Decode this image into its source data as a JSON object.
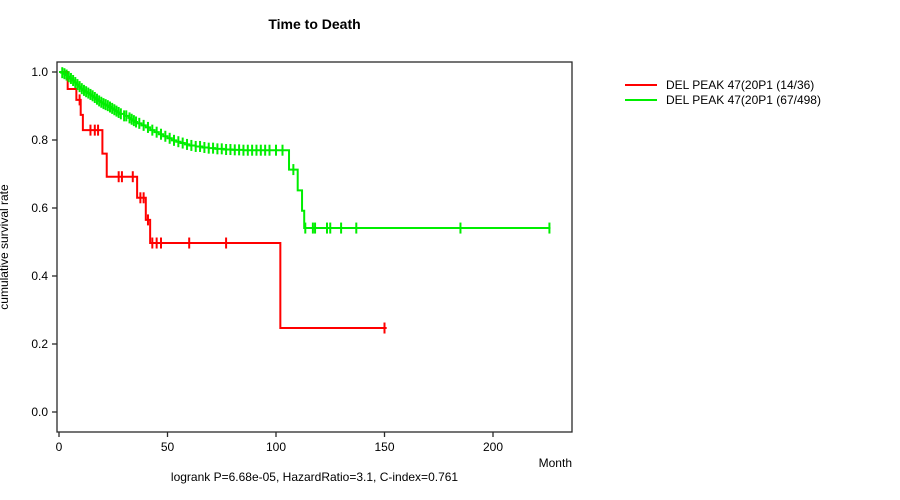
{
  "title": "Time to Death",
  "footer": "logrank P=6.68e-05, HazardRatio=3.1, C-index=0.761",
  "axes": {
    "x_label": "Month",
    "y_label": "cumulative survival rate",
    "x_ticks": [
      0,
      50,
      100,
      150,
      200
    ],
    "y_ticks": [
      "0.0",
      "0.2",
      "0.4",
      "0.6",
      "0.8",
      "1.0"
    ]
  },
  "legend": {
    "items": [
      {
        "label": "DEL PEAK 47(20P1 (14/36)",
        "color": "#ff0000"
      },
      {
        "label": "DEL PEAK 47(20P1 (67/498)",
        "color": "#00ee00"
      }
    ]
  },
  "chart_data": {
    "type": "line",
    "subtype": "kaplan-meier-step",
    "title": "Time to Death",
    "xlabel": "Month",
    "ylabel": "cumulative survival rate",
    "xlim": [
      0,
      236
    ],
    "ylim": [
      0,
      1.04
    ],
    "grid": false,
    "legend_position": "right-outside",
    "series": [
      {
        "name": "DEL PEAK 47(20P1 (14/36)",
        "color": "#ff0000",
        "steps": [
          [
            0,
            1.0
          ],
          [
            4,
            0.95
          ],
          [
            8,
            0.918
          ],
          [
            10,
            0.874
          ],
          [
            11,
            0.829
          ],
          [
            20,
            0.76
          ],
          [
            22,
            0.692
          ],
          [
            36,
            0.63
          ],
          [
            40,
            0.565
          ],
          [
            42,
            0.497
          ],
          [
            102,
            0.247
          ]
        ],
        "end": 151,
        "censors": [
          9.5,
          14.5,
          16.5,
          18,
          27.5,
          29,
          34,
          37.5,
          39,
          41,
          43,
          45,
          47,
          60,
          77,
          150
        ]
      },
      {
        "name": "DEL PEAK 47(20P1 (67/498)",
        "color": "#00ee00",
        "steps": [
          [
            0,
            1.0
          ],
          [
            1,
            0.998
          ],
          [
            2,
            0.995
          ],
          [
            3,
            0.991
          ],
          [
            4,
            0.986
          ],
          [
            5,
            0.981
          ],
          [
            6,
            0.975
          ],
          [
            7,
            0.969
          ],
          [
            8,
            0.963
          ],
          [
            9,
            0.957
          ],
          [
            10,
            0.951
          ],
          [
            11,
            0.946
          ],
          [
            12,
            0.942
          ],
          [
            13,
            0.938
          ],
          [
            14,
            0.934
          ],
          [
            15,
            0.93
          ],
          [
            16,
            0.925
          ],
          [
            17,
            0.92
          ],
          [
            18,
            0.915
          ],
          [
            19,
            0.911
          ],
          [
            20,
            0.907
          ],
          [
            21,
            0.904
          ],
          [
            22,
            0.901
          ],
          [
            23,
            0.897
          ],
          [
            24,
            0.893
          ],
          [
            25,
            0.889
          ],
          [
            26,
            0.885
          ],
          [
            27,
            0.881
          ],
          [
            28,
            0.877
          ],
          [
            30,
            0.871
          ],
          [
            32,
            0.865
          ],
          [
            33,
            0.861
          ],
          [
            34,
            0.857
          ],
          [
            35,
            0.853
          ],
          [
            36,
            0.849
          ],
          [
            38,
            0.843
          ],
          [
            40,
            0.837
          ],
          [
            42,
            0.829
          ],
          [
            44,
            0.823
          ],
          [
            46,
            0.817
          ],
          [
            48,
            0.811
          ],
          [
            50,
            0.805
          ],
          [
            52,
            0.799
          ],
          [
            54,
            0.795
          ],
          [
            56,
            0.791
          ],
          [
            58,
            0.787
          ],
          [
            60,
            0.784
          ],
          [
            63,
            0.781
          ],
          [
            66,
            0.778
          ],
          [
            69,
            0.776
          ],
          [
            72,
            0.774
          ],
          [
            76,
            0.772
          ],
          [
            80,
            0.771
          ],
          [
            85,
            0.77
          ],
          [
            106,
            0.713
          ],
          [
            110,
            0.652
          ],
          [
            112,
            0.592
          ],
          [
            113,
            0.541
          ]
        ],
        "end": 226.5,
        "censors": [
          1.5,
          2.5,
          3.5,
          4.5,
          5.5,
          6.5,
          7.5,
          8.5,
          9.5,
          10.5,
          11.5,
          12.5,
          13.5,
          14.5,
          15.5,
          16.5,
          17.5,
          18.5,
          19.5,
          20.5,
          21.5,
          22.5,
          23.5,
          24.5,
          25.5,
          26.5,
          27.5,
          28.5,
          30,
          31,
          32.5,
          33.5,
          34.5,
          35.5,
          37,
          39,
          41,
          43,
          45,
          47,
          49,
          51,
          53,
          55,
          57,
          59,
          61,
          63,
          65,
          67,
          69,
          71,
          73,
          75,
          77,
          79,
          81,
          83,
          85,
          87,
          89,
          91,
          93,
          95,
          97,
          100,
          103,
          108,
          113.5,
          117,
          118,
          123.5,
          125,
          130,
          137,
          185,
          226
        ]
      }
    ]
  }
}
